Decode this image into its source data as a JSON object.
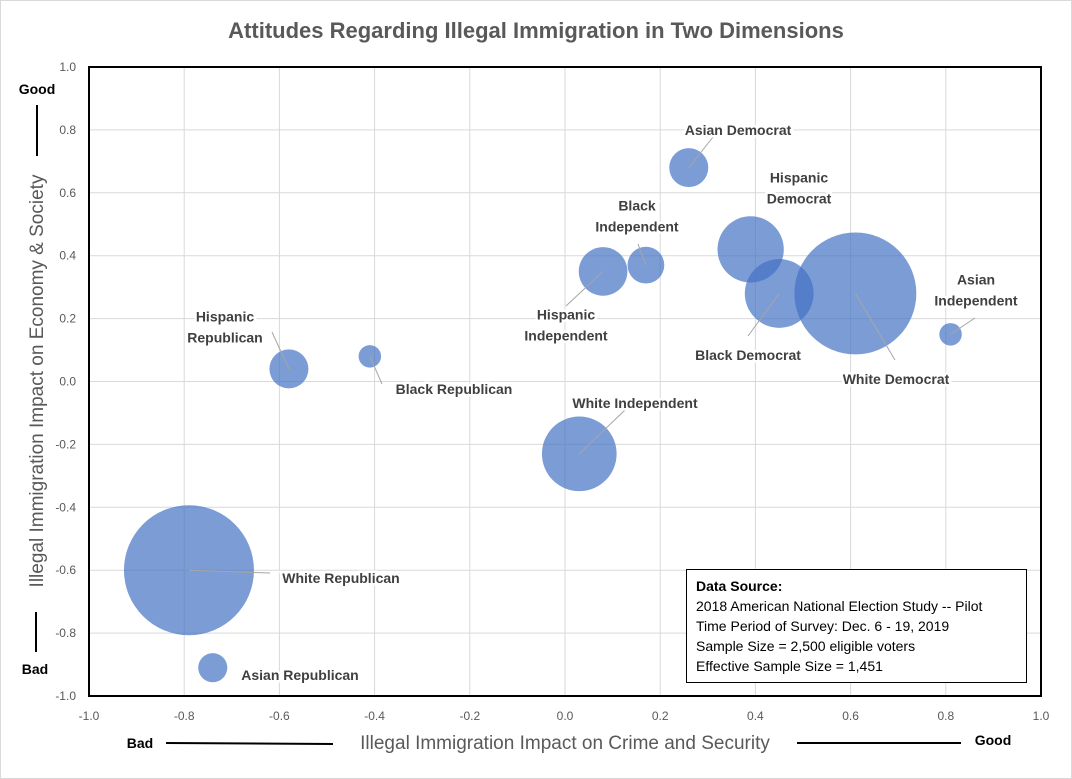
{
  "chart_data": {
    "type": "scatter",
    "subtype": "bubble",
    "title": "Attitudes Regarding Illegal Immigration in Two Dimensions",
    "xlabel": "Illegal Immigration Impact on Crime and Security",
    "ylabel": "Illegal Immigration Impact on Economy & Society",
    "x_low_label": "Bad",
    "x_high_label": "Good",
    "y_low_label": "Bad",
    "y_high_label": "Good",
    "xlim": [
      -1.0,
      1.0
    ],
    "ylim": [
      -1.0,
      1.0
    ],
    "xticks": [
      "-1.0",
      "-0.8",
      "-0.6",
      "-0.4",
      "-0.2",
      "0.0",
      "0.2",
      "0.4",
      "0.6",
      "0.8",
      "1.0"
    ],
    "yticks": [
      "1.0",
      "0.8",
      "0.6",
      "0.4",
      "0.2",
      "0.0",
      "-0.2",
      "-0.4",
      "-0.6",
      "-0.8",
      "-1.0"
    ],
    "grid": true,
    "bubble_color": "#4472c4",
    "points": [
      {
        "label": "Asian Democrat",
        "x": 0.26,
        "y": 0.68,
        "size": 0.09
      },
      {
        "label": "Black Independent",
        "x": 0.17,
        "y": 0.37,
        "size": 0.08
      },
      {
        "label": "Hispanic Independent",
        "x": 0.08,
        "y": 0.35,
        "size": 0.14
      },
      {
        "label": "Hispanic Democrat",
        "x": 0.39,
        "y": 0.42,
        "size": 0.26
      },
      {
        "label": "Black Democrat",
        "x": 0.45,
        "y": 0.28,
        "size": 0.28
      },
      {
        "label": "White Democrat",
        "x": 0.61,
        "y": 0.28,
        "size": 0.88
      },
      {
        "label": "Asian Independent",
        "x": 0.81,
        "y": 0.15,
        "size": 0.03
      },
      {
        "label": "Hispanic Republican",
        "x": -0.58,
        "y": 0.04,
        "size": 0.09
      },
      {
        "label": "Black Republican",
        "x": -0.41,
        "y": 0.08,
        "size": 0.03
      },
      {
        "label": "White Independent",
        "x": 0.03,
        "y": -0.23,
        "size": 0.33
      },
      {
        "label": "White Republican",
        "x": -0.79,
        "y": -0.6,
        "size": 1.0
      },
      {
        "label": "Asian Republican",
        "x": -0.74,
        "y": -0.91,
        "size": 0.05
      }
    ]
  },
  "source_box": {
    "heading": "Data Source:",
    "lines": [
      "2018 American National Election Study -- Pilot",
      "Time Period of Survey: Dec. 6 - 19, 2019",
      "Sample Size = 2,500 eligible voters",
      "Effective Sample Size = 1,451"
    ]
  }
}
